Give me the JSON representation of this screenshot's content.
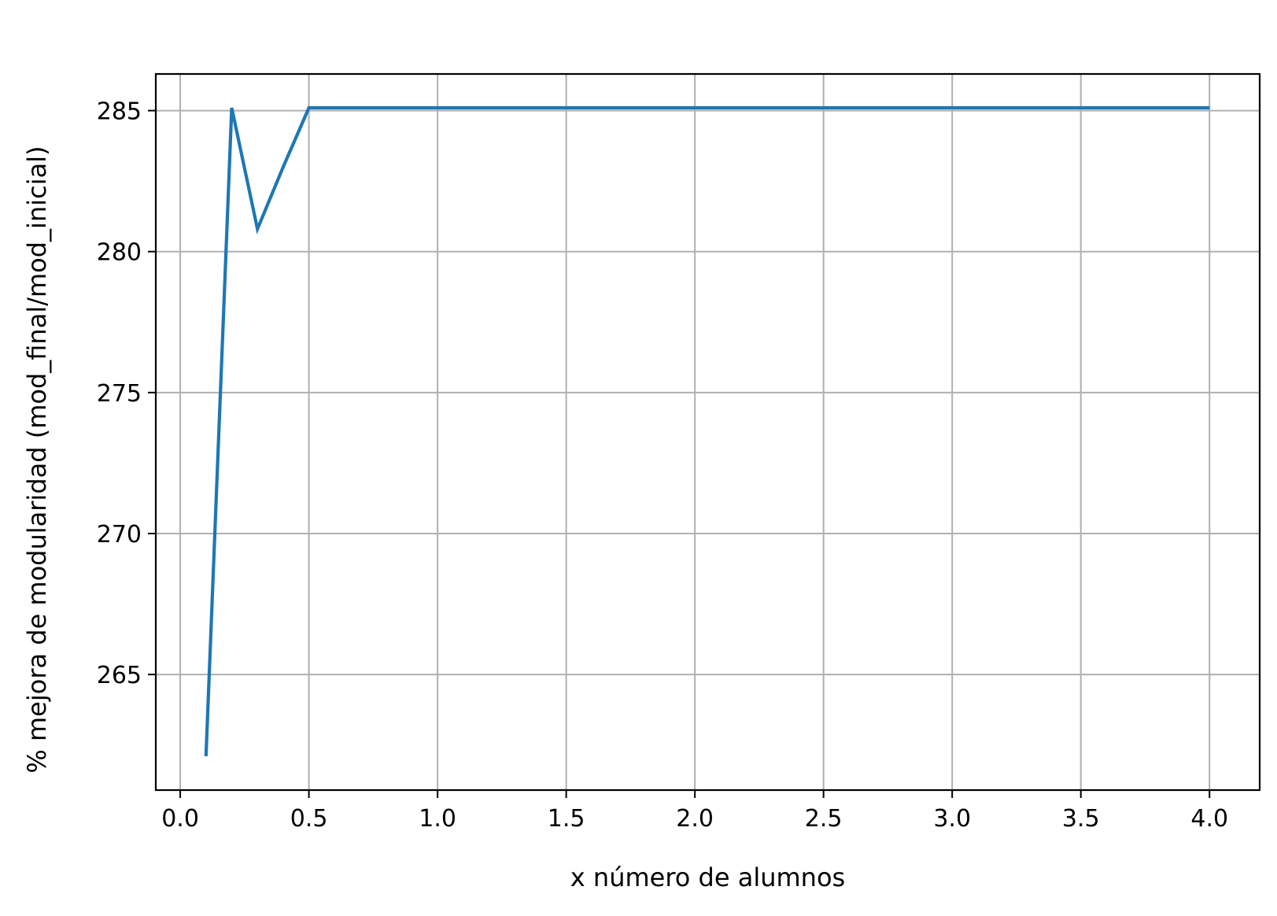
{
  "chart_data": {
    "type": "line",
    "title": "",
    "xlabel": "x número de alumnos",
    "ylabel": "% mejora de modularidad (mod_final/mod_inicial)",
    "xlim": [
      -0.095,
      4.195
    ],
    "ylim": [
      260.9,
      286.3
    ],
    "xticks": [
      0.0,
      0.5,
      1.0,
      1.5,
      2.0,
      2.5,
      3.0,
      3.5,
      4.0
    ],
    "xtick_labels": [
      "0.0",
      "0.5",
      "1.0",
      "1.5",
      "2.0",
      "2.5",
      "3.0",
      "3.5",
      "4.0"
    ],
    "yticks": [
      265,
      270,
      275,
      280,
      285
    ],
    "ytick_labels": [
      "265",
      "270",
      "275",
      "280",
      "285"
    ],
    "grid": true,
    "legend": "none",
    "series": [
      {
        "color": "#1f77b4",
        "x": [
          0.1,
          0.2,
          0.3,
          0.4,
          0.5,
          1.0,
          1.5,
          2.0,
          2.5,
          3.0,
          3.5,
          4.0
        ],
        "y": [
          262.1,
          285.1,
          280.8,
          283.0,
          285.1,
          285.1,
          285.1,
          285.1,
          285.1,
          285.1,
          285.1,
          285.1
        ]
      }
    ]
  }
}
